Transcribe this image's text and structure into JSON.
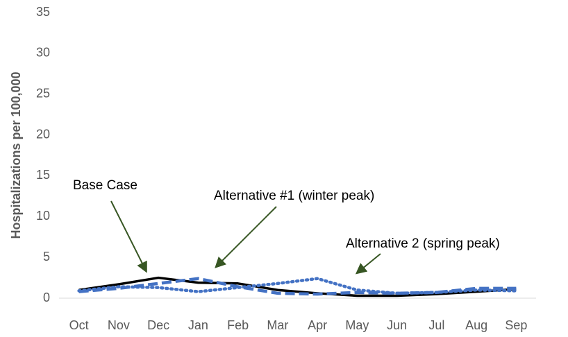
{
  "chart_data": {
    "type": "line",
    "categories": [
      "Oct",
      "Nov",
      "Dec",
      "Jan",
      "Feb",
      "Mar",
      "Apr",
      "May",
      "Jun",
      "Jul",
      "Aug",
      "Sep"
    ],
    "series": [
      {
        "name": "Base Case",
        "color": "#000000",
        "dash": "solid",
        "values": [
          1.0,
          1.7,
          2.5,
          1.9,
          1.8,
          1.0,
          0.6,
          0.3,
          0.3,
          0.5,
          0.8,
          1.1
        ]
      },
      {
        "name": "Alternative #1 (winter peak)",
        "color": "#4472c4",
        "dash": "dashed",
        "values": [
          0.8,
          1.2,
          1.8,
          2.4,
          1.4,
          0.6,
          0.5,
          0.7,
          0.6,
          0.7,
          1.2,
          1.2
        ]
      },
      {
        "name": "Alternative 2 (spring peak)",
        "color": "#4472c4",
        "dash": "dotted",
        "values": [
          0.9,
          1.4,
          1.3,
          0.8,
          1.3,
          1.8,
          2.4,
          1.0,
          0.6,
          0.7,
          1.0,
          0.9
        ]
      }
    ],
    "y_label": "Hospitalizations per 100,000",
    "ylim": [
      0,
      35
    ],
    "yticks": [
      0,
      5,
      10,
      15,
      20,
      25,
      30,
      35
    ],
    "grid": false
  }
}
